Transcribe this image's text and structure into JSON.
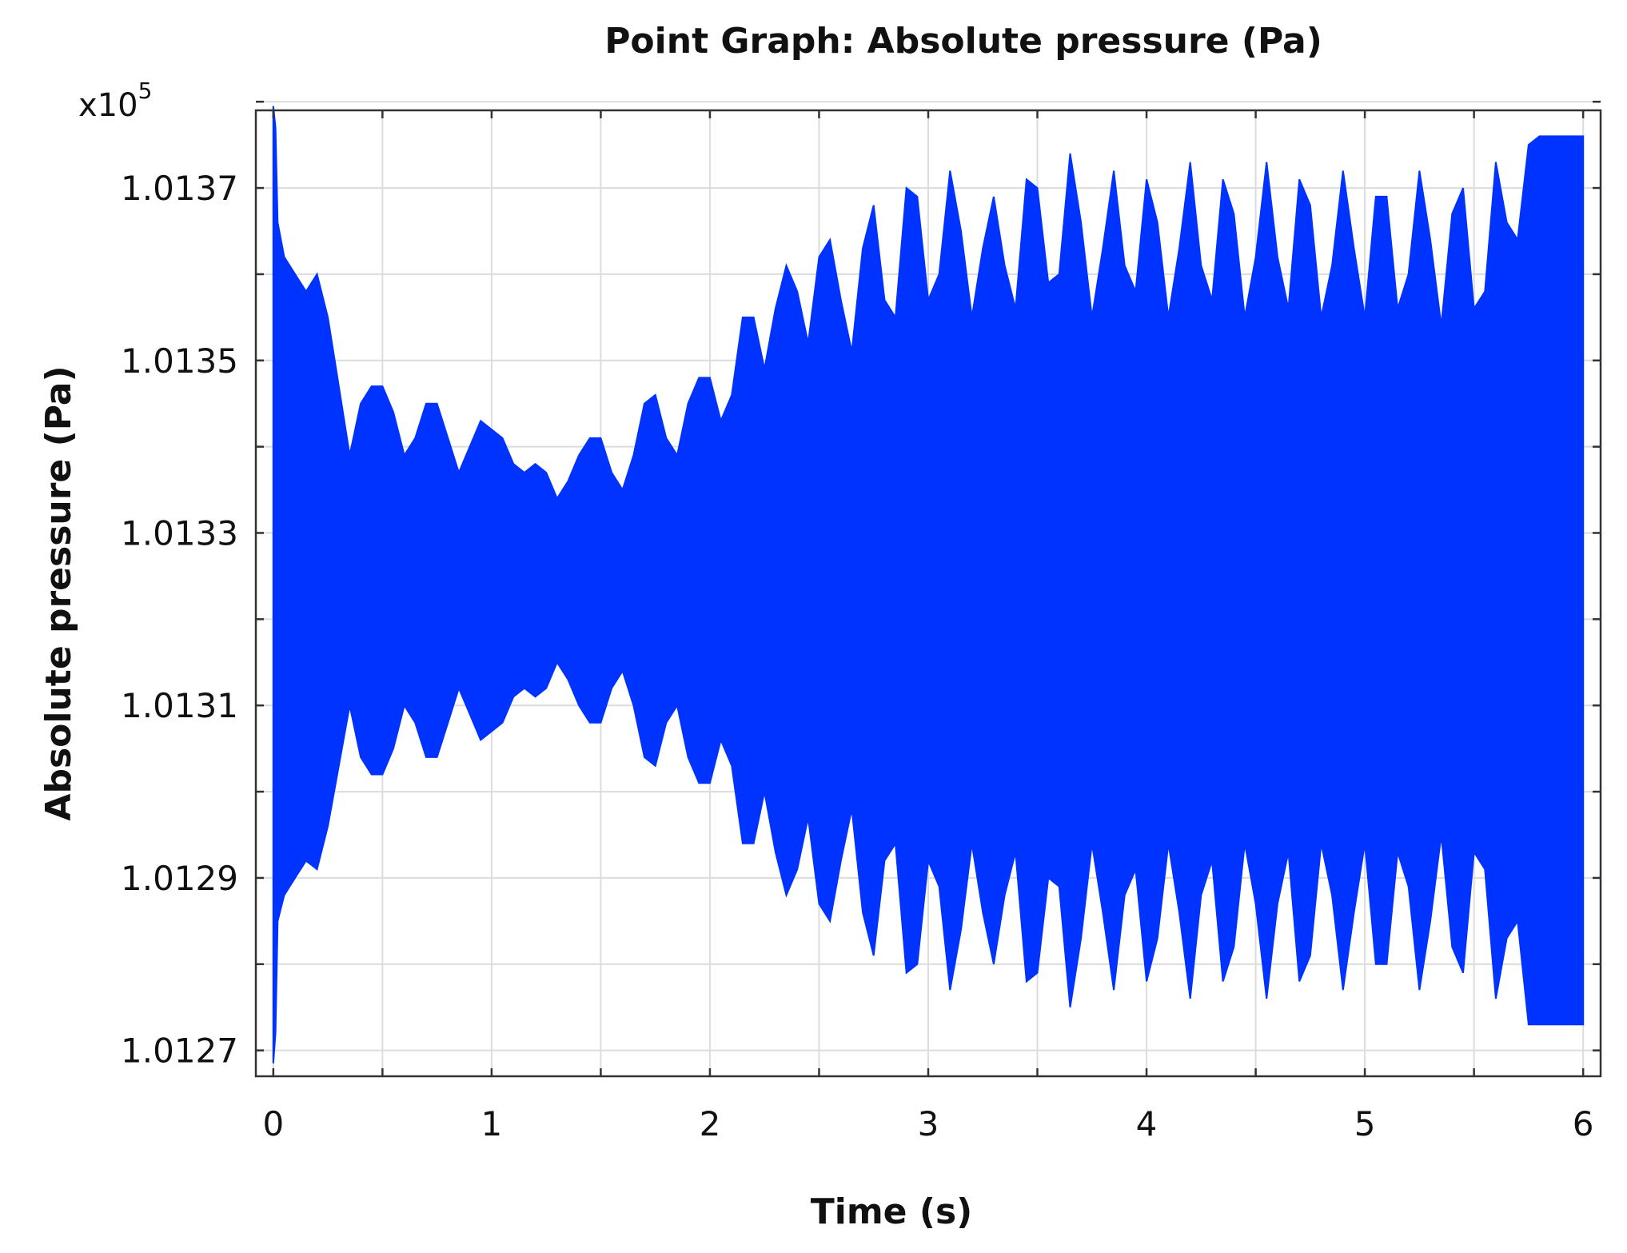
{
  "chart_data": {
    "type": "area",
    "title": "Point Graph: Absolute pressure (Pa)",
    "xlabel": "Time (s)",
    "ylabel": "Absolute pressure (Pa)",
    "y_multiplier_label": "x10",
    "y_multiplier_exponent": "5",
    "xlim": [
      -0.08,
      6.08
    ],
    "ylim": [
      1.01267,
      1.01379
    ],
    "xticks": [
      0,
      1,
      2,
      3,
      4,
      5,
      6
    ],
    "xtick_labels": [
      "0",
      "1",
      "2",
      "3",
      "4",
      "5",
      "6"
    ],
    "yticks": [
      1.0127,
      1.0129,
      1.0131,
      1.0133,
      1.0135,
      1.0137
    ],
    "ytick_labels": [
      "1.0127",
      "1.0129",
      "1.0131",
      "1.0133",
      "1.0135",
      "1.0137"
    ],
    "grid": true,
    "color": "#0033ff",
    "series": [
      {
        "x": [
          0,
          0.01,
          0.02,
          0.05,
          0.1,
          0.15,
          0.2,
          0.25,
          0.3,
          0.35,
          0.4,
          0.45,
          0.5,
          0.55,
          0.6,
          0.65,
          0.7,
          0.75,
          0.8,
          0.85,
          0.9,
          0.95,
          1.0,
          1.05,
          1.1,
          1.15,
          1.2,
          1.25,
          1.3,
          1.35,
          1.4,
          1.45,
          1.5,
          1.55,
          1.6,
          1.65,
          1.7,
          1.75,
          1.8,
          1.85,
          1.9,
          1.95,
          2.0,
          2.05,
          2.1,
          2.15,
          2.2,
          2.25,
          2.3,
          2.35,
          2.4,
          2.45,
          2.5,
          2.55,
          2.6,
          2.65,
          2.7,
          2.75,
          2.8,
          2.85,
          2.9,
          2.95,
          3.0,
          3.05,
          3.1,
          3.15,
          3.2,
          3.25,
          3.3,
          3.35,
          3.4,
          3.45,
          3.5,
          3.55,
          3.6,
          3.65,
          3.7,
          3.75,
          3.8,
          3.85,
          3.9,
          3.95,
          4.0,
          4.05,
          4.1,
          4.15,
          4.2,
          4.25,
          4.3,
          4.35,
          4.4,
          4.45,
          4.5,
          4.55,
          4.6,
          4.65,
          4.7,
          4.75,
          4.8,
          4.85,
          4.9,
          4.95,
          5.0,
          5.05,
          5.1,
          5.15,
          5.2,
          5.25,
          5.3,
          5.35,
          5.4,
          5.45,
          5.5,
          5.55,
          5.6,
          5.65,
          5.7,
          5.75,
          5.8,
          5.85,
          5.9,
          5.95,
          6.0
        ],
        "upper": [
          1.013795,
          1.01377,
          1.01366,
          1.01362,
          1.0136,
          1.01358,
          1.0136,
          1.01355,
          1.01347,
          1.01339,
          1.01345,
          1.01347,
          1.01347,
          1.01344,
          1.01339,
          1.01341,
          1.01345,
          1.01345,
          1.01341,
          1.01337,
          1.0134,
          1.01343,
          1.01342,
          1.01341,
          1.01338,
          1.01337,
          1.01338,
          1.01337,
          1.01334,
          1.01336,
          1.01339,
          1.01341,
          1.01341,
          1.01337,
          1.01335,
          1.01339,
          1.01345,
          1.01346,
          1.01341,
          1.01339,
          1.01345,
          1.01348,
          1.01348,
          1.01343,
          1.01346,
          1.01355,
          1.01355,
          1.01349,
          1.01356,
          1.01361,
          1.01358,
          1.01352,
          1.01362,
          1.01364,
          1.01357,
          1.01351,
          1.01363,
          1.01368,
          1.01357,
          1.01355,
          1.0137,
          1.01369,
          1.01357,
          1.0136,
          1.01372,
          1.01365,
          1.01355,
          1.01363,
          1.01369,
          1.01361,
          1.01356,
          1.01371,
          1.0137,
          1.01359,
          1.0136,
          1.01374,
          1.01366,
          1.01355,
          1.01363,
          1.01372,
          1.01361,
          1.01358,
          1.01371,
          1.01366,
          1.01355,
          1.01363,
          1.01373,
          1.01361,
          1.01357,
          1.01371,
          1.01367,
          1.01355,
          1.01362,
          1.01373,
          1.01362,
          1.01356,
          1.01371,
          1.01368,
          1.01355,
          1.01361,
          1.01372,
          1.01363,
          1.01355,
          1.01369,
          1.01369,
          1.01356,
          1.0136,
          1.01372,
          1.01364,
          1.01354,
          1.01367,
          1.0137,
          1.01356,
          1.01358,
          1.01373,
          1.01366,
          1.01364,
          1.01375,
          1.01376,
          1.01376,
          1.01376,
          1.01376,
          1.01376
        ],
        "lower": [
          1.012685,
          1.01272,
          1.01285,
          1.01288,
          1.0129,
          1.01292,
          1.01291,
          1.01296,
          1.01303,
          1.0131,
          1.01304,
          1.01302,
          1.01302,
          1.01305,
          1.0131,
          1.01308,
          1.01304,
          1.01304,
          1.01308,
          1.01312,
          1.01309,
          1.01306,
          1.01307,
          1.01308,
          1.01311,
          1.01312,
          1.01311,
          1.01312,
          1.01315,
          1.01313,
          1.0131,
          1.01308,
          1.01308,
          1.01312,
          1.01314,
          1.0131,
          1.01304,
          1.01303,
          1.01308,
          1.0131,
          1.01304,
          1.01301,
          1.01301,
          1.01306,
          1.01303,
          1.01294,
          1.01294,
          1.013,
          1.01293,
          1.01288,
          1.01291,
          1.01297,
          1.01287,
          1.01285,
          1.01292,
          1.01298,
          1.01286,
          1.01281,
          1.01292,
          1.01294,
          1.01279,
          1.0128,
          1.01292,
          1.01289,
          1.01277,
          1.01284,
          1.01294,
          1.01286,
          1.0128,
          1.01288,
          1.01293,
          1.01278,
          1.01279,
          1.0129,
          1.01289,
          1.01275,
          1.01283,
          1.01294,
          1.01286,
          1.01277,
          1.01288,
          1.01291,
          1.01278,
          1.01283,
          1.01294,
          1.01286,
          1.01276,
          1.01288,
          1.01292,
          1.01278,
          1.01282,
          1.01294,
          1.01287,
          1.01276,
          1.01287,
          1.01293,
          1.01278,
          1.01281,
          1.01294,
          1.01288,
          1.01277,
          1.01286,
          1.01294,
          1.0128,
          1.0128,
          1.01293,
          1.01289,
          1.01277,
          1.01285,
          1.01295,
          1.01282,
          1.01279,
          1.01293,
          1.01291,
          1.01276,
          1.01283,
          1.01285,
          1.01273,
          1.01273,
          1.01273,
          1.01273,
          1.01273,
          1.01273
        ]
      }
    ]
  }
}
